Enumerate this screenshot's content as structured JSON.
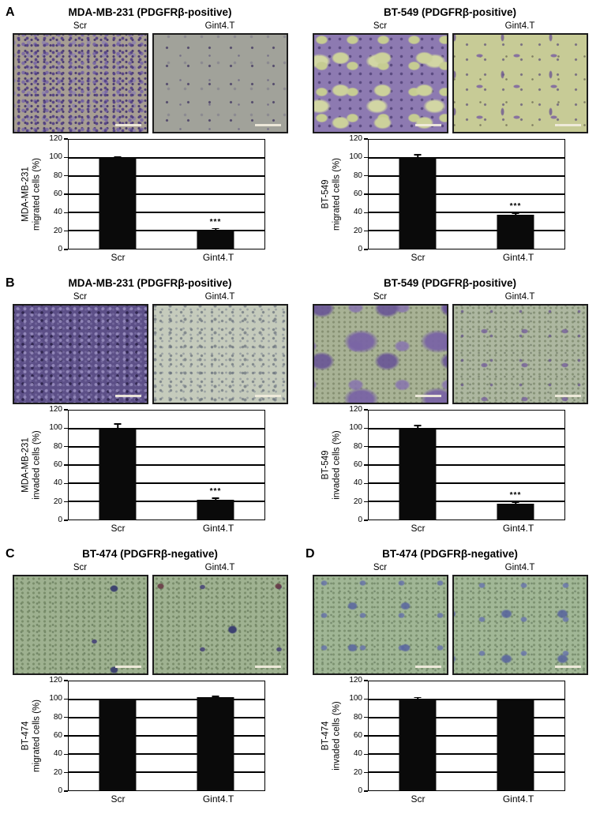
{
  "colors": {
    "background": "#ffffff",
    "bar_fill": "#0a0a0a",
    "axis_and_grid": "#000000",
    "text": "#000000",
    "scale_bar": "#f0ebdc"
  },
  "panels": [
    {
      "letter": "A",
      "title": "MDA-MB-231 (PDGFRβ-positive)",
      "images": [
        {
          "label": "Scr",
          "appearance": "mda-mig-scr",
          "palette": {
            "bg": "#a79e93",
            "stain": "#5c4a8a"
          }
        },
        {
          "label": "Gint4.T",
          "appearance": "mda-mig-g4t",
          "palette": {
            "bg": "#a1a29a",
            "stain": "#463c64"
          }
        }
      ],
      "chart": {
        "ylabel_line1": "MDA-MB-231",
        "ylabel_line2": "migrated cells (%)",
        "categories": [
          "Scr",
          "Gint4.T"
        ],
        "values": [
          100,
          21
        ],
        "errors": [
          2,
          2
        ],
        "sig": [
          "",
          "***"
        ],
        "ymax": 120,
        "ystep": 20
      }
    },
    {
      "letter": "",
      "title": "BT-549 (PDGFRβ-positive)",
      "images": [
        {
          "label": "Scr",
          "appearance": "bt549-mig-scr",
          "palette": {
            "bg": "#8d7ab1",
            "stain": "#ccd19b"
          }
        },
        {
          "label": "Gint4.T",
          "appearance": "bt549-mig-g4t",
          "palette": {
            "bg": "#c7cb96",
            "stain": "#8068a0"
          }
        }
      ],
      "chart": {
        "ylabel_line1": "BT-549",
        "ylabel_line2": "migrated cells (%)",
        "categories": [
          "Scr",
          "Gint4.T"
        ],
        "values": [
          100,
          37
        ],
        "errors": [
          4,
          3
        ],
        "sig": [
          "",
          "***"
        ],
        "ymax": 120,
        "ystep": 20
      }
    },
    {
      "letter": "B",
      "title": "MDA-MB-231 (PDGFRβ-positive)",
      "images": [
        {
          "label": "Scr",
          "appearance": "mda-inv-scr",
          "palette": {
            "bg": "#5c4f87",
            "stain": "#281f46"
          }
        },
        {
          "label": "Gint4.T",
          "appearance": "mda-inv-g4t",
          "palette": {
            "bg": "#c5cbbc",
            "stain": "#646c78"
          }
        }
      ],
      "chart": {
        "ylabel_line1": "MDA-MB-231",
        "ylabel_line2": "invaded cells (%)",
        "categories": [
          "Scr",
          "Gint4.T"
        ],
        "values": [
          100,
          22
        ],
        "errors": [
          6,
          2
        ],
        "sig": [
          "",
          "***"
        ],
        "ymax": 120,
        "ystep": 20
      }
    },
    {
      "letter": "",
      "title": "BT-549 (PDGFRβ-positive)",
      "images": [
        {
          "label": "Scr",
          "appearance": "bt549-inv-scr",
          "palette": {
            "bg": "#a8b295",
            "stain": "#7964a4"
          }
        },
        {
          "label": "Gint4.T",
          "appearance": "bt549-inv-g4t",
          "palette": {
            "bg": "#adb7a0",
            "stain": "#76609c"
          }
        }
      ],
      "chart": {
        "ylabel_line1": "BT-549",
        "ylabel_line2": "invaded cells (%)",
        "categories": [
          "Scr",
          "Gint4.T"
        ],
        "values": [
          100,
          17
        ],
        "errors": [
          4,
          3
        ],
        "sig": [
          "",
          "***"
        ],
        "ymax": 120,
        "ystep": 20
      }
    },
    {
      "letter": "C",
      "title": "BT-474 (PDGFRβ-negative)",
      "images": [
        {
          "label": "Scr",
          "appearance": "bt474-mig-scr",
          "palette": {
            "bg": "#9eb190",
            "stain": "#3a3e6e"
          }
        },
        {
          "label": "Gint4.T",
          "appearance": "bt474-mig-g4t",
          "palette": {
            "bg": "#9fb291",
            "stain": "#383c70"
          }
        }
      ],
      "chart": {
        "ylabel_line1": "BT-474",
        "ylabel_line2": "migrated cells (%)",
        "categories": [
          "Scr",
          "Gint4.T"
        ],
        "values": [
          100,
          103
        ],
        "errors": [
          1,
          1
        ],
        "sig": [
          "",
          ""
        ],
        "ymax": 120,
        "ystep": 20
      }
    },
    {
      "letter": "D",
      "title": "BT-474 (PDGFRβ-negative)",
      "images": [
        {
          "label": "Scr",
          "appearance": "bt474-inv-scr",
          "palette": {
            "bg": "#a0b695",
            "stain": "#5864a0"
          }
        },
        {
          "label": "Gint4.T",
          "appearance": "bt474-inv-g4t",
          "palette": {
            "bg": "#a1b796",
            "stain": "#56629e"
          }
        }
      ],
      "chart": {
        "ylabel_line1": "BT-474",
        "ylabel_line2": "invaded cells (%)",
        "categories": [
          "Scr",
          "Gint4.T"
        ],
        "values": [
          100,
          99
        ],
        "errors": [
          3,
          2
        ],
        "sig": [
          "",
          ""
        ],
        "ymax": 120,
        "ystep": 20
      }
    }
  ],
  "chart_data": [
    {
      "type": "bar",
      "panel": "A",
      "title": "MDA-MB-231 (PDGFRβ-positive)",
      "categories": [
        "Scr",
        "Gint4.T"
      ],
      "values": [
        100,
        21
      ],
      "errors": [
        2,
        2
      ],
      "significance": [
        "",
        "***"
      ],
      "ylabel": "MDA-MB-231 migrated cells (%)",
      "ylim": [
        0,
        120
      ],
      "ytick_step": 20,
      "grid": true,
      "bar_color": "#0a0a0a"
    },
    {
      "type": "bar",
      "panel": "A",
      "title": "BT-549 (PDGFRβ-positive)",
      "categories": [
        "Scr",
        "Gint4.T"
      ],
      "values": [
        100,
        37
      ],
      "errors": [
        4,
        3
      ],
      "significance": [
        "",
        "***"
      ],
      "ylabel": "BT-549 migrated cells (%)",
      "ylim": [
        0,
        120
      ],
      "ytick_step": 20,
      "grid": true,
      "bar_color": "#0a0a0a"
    },
    {
      "type": "bar",
      "panel": "B",
      "title": "MDA-MB-231 (PDGFRβ-positive)",
      "categories": [
        "Scr",
        "Gint4.T"
      ],
      "values": [
        100,
        22
      ],
      "errors": [
        6,
        2
      ],
      "significance": [
        "",
        "***"
      ],
      "ylabel": "MDA-MB-231 invaded cells (%)",
      "ylim": [
        0,
        120
      ],
      "ytick_step": 20,
      "grid": true,
      "bar_color": "#0a0a0a"
    },
    {
      "type": "bar",
      "panel": "B",
      "title": "BT-549 (PDGFRβ-positive)",
      "categories": [
        "Scr",
        "Gint4.T"
      ],
      "values": [
        100,
        17
      ],
      "errors": [
        4,
        3
      ],
      "significance": [
        "",
        "***"
      ],
      "ylabel": "BT-549 invaded cells (%)",
      "ylim": [
        0,
        120
      ],
      "ytick_step": 20,
      "grid": true,
      "bar_color": "#0a0a0a"
    },
    {
      "type": "bar",
      "panel": "C",
      "title": "BT-474 (PDGFRβ-negative)",
      "categories": [
        "Scr",
        "Gint4.T"
      ],
      "values": [
        100,
        103
      ],
      "errors": [
        1,
        1
      ],
      "significance": [
        "",
        ""
      ],
      "ylabel": "BT-474 migrated cells (%)",
      "ylim": [
        0,
        120
      ],
      "ytick_step": 20,
      "grid": true,
      "bar_color": "#0a0a0a"
    },
    {
      "type": "bar",
      "panel": "D",
      "title": "BT-474 (PDGFRβ-negative)",
      "categories": [
        "Scr",
        "Gint4.T"
      ],
      "values": [
        100,
        99
      ],
      "errors": [
        3,
        2
      ],
      "significance": [
        "",
        ""
      ],
      "ylabel": "BT-474 invaded cells (%)",
      "ylim": [
        0,
        120
      ],
      "ytick_step": 20,
      "grid": true,
      "bar_color": "#0a0a0a"
    }
  ]
}
